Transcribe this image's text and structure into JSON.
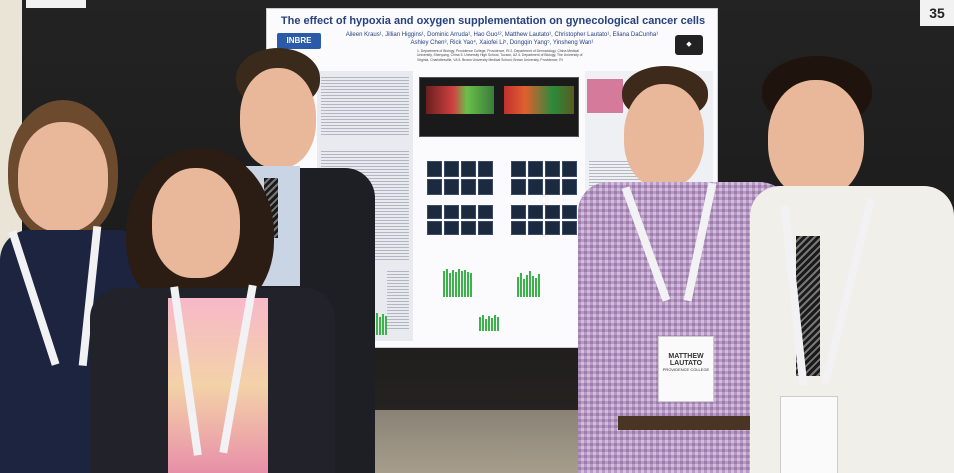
{
  "poster": {
    "title": "The effect of hypoxia and oxygen supplementation on gynecological cancer cells",
    "authors": "Aileen Kraus¹, Jillian Higgins¹, Dominic Arruda¹, Hao Guo¹², Matthew Lautato¹, Christopher Lautato¹, Eliana DaCunha¹ Ashley Chen³, Rick Yao⁴, Xaiofei Li⁵, Dongqin Yang⁵, Yinsheng Wan¹",
    "affiliations": "1. Department of Biology, Providence College, Providence, RI 2. Department of Dermatology, China Medical University, Shenyang, China 3. University High School, Tucson, AZ 4. Department of Biology, The University of Virginia, Charlottesville, VA 5. Brown University Medical School, Brown University, Providence, RI",
    "logo_left": "INBRE"
  },
  "badge": {
    "name": "MATTHEW LAUTATO",
    "school": "PROVIDENCE COLLEGE"
  },
  "booth_number": "35",
  "colors": {
    "poster_title": "#27407e",
    "chart_green": "#3bb34a",
    "lanyard": "#f2f2f4"
  }
}
